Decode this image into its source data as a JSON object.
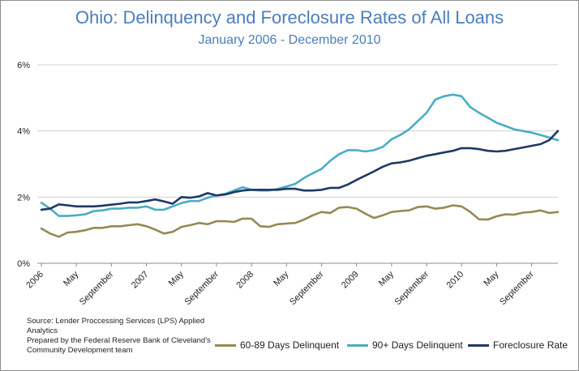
{
  "chart_data": {
    "type": "line",
    "title": "Ohio: Delinquency and Foreclosure Rates of All Loans",
    "subtitle": "January 2006 - December 2010",
    "xlabel": "",
    "ylabel": "",
    "ylim": [
      0,
      6
    ],
    "y_ticks": [
      0,
      2,
      4,
      6
    ],
    "y_tick_labels": [
      "0%",
      "2%",
      "4%",
      "6%"
    ],
    "x_tick_labels": [
      {
        "label": "2006",
        "month": 0
      },
      {
        "label": "May",
        "month": 4
      },
      {
        "label": "September",
        "month": 8
      },
      {
        "label": "2007",
        "month": 12
      },
      {
        "label": "May",
        "month": 16
      },
      {
        "label": "September",
        "month": 20
      },
      {
        "label": "2008",
        "month": 24
      },
      {
        "label": "May",
        "month": 28
      },
      {
        "label": "September",
        "month": 32
      },
      {
        "label": "2009",
        "month": 36
      },
      {
        "label": "May",
        "month": 40
      },
      {
        "label": "September",
        "month": 44
      },
      {
        "label": "2010",
        "month": 48
      },
      {
        "label": "May",
        "month": 52
      },
      {
        "label": "September",
        "month": 56
      }
    ],
    "grid": "horizontal",
    "legend_position": "bottom",
    "series": [
      {
        "name": "60-89 Days Delinquent",
        "color": "#948a54",
        "values": [
          1.05,
          0.9,
          0.8,
          0.93,
          0.95,
          1.0,
          1.07,
          1.07,
          1.12,
          1.12,
          1.15,
          1.18,
          1.12,
          1.02,
          0.9,
          0.95,
          1.1,
          1.15,
          1.22,
          1.18,
          1.27,
          1.27,
          1.25,
          1.35,
          1.35,
          1.12,
          1.1,
          1.18,
          1.2,
          1.22,
          1.32,
          1.45,
          1.55,
          1.52,
          1.68,
          1.7,
          1.65,
          1.5,
          1.37,
          1.45,
          1.55,
          1.58,
          1.6,
          1.7,
          1.72,
          1.65,
          1.68,
          1.75,
          1.72,
          1.55,
          1.33,
          1.32,
          1.42,
          1.48,
          1.47,
          1.53,
          1.55,
          1.6,
          1.52,
          1.55
        ]
      },
      {
        "name": "90+ Days Delinquent",
        "color": "#4bacc6",
        "values": [
          1.83,
          1.65,
          1.43,
          1.43,
          1.45,
          1.48,
          1.58,
          1.6,
          1.65,
          1.65,
          1.68,
          1.68,
          1.72,
          1.62,
          1.62,
          1.72,
          1.82,
          1.88,
          1.88,
          1.98,
          2.05,
          2.1,
          2.2,
          2.3,
          2.22,
          2.2,
          2.2,
          2.25,
          2.32,
          2.4,
          2.58,
          2.72,
          2.85,
          3.1,
          3.3,
          3.42,
          3.42,
          3.38,
          3.42,
          3.52,
          3.75,
          3.88,
          4.05,
          4.3,
          4.55,
          4.95,
          5.05,
          5.1,
          5.05,
          4.72,
          4.55,
          4.4,
          4.25,
          4.15,
          4.05,
          4.0,
          3.95,
          3.88,
          3.8,
          3.72
        ]
      },
      {
        "name": "Foreclosure Rate",
        "color": "#1f3864",
        "values": [
          1.62,
          1.65,
          1.78,
          1.75,
          1.72,
          1.72,
          1.72,
          1.74,
          1.77,
          1.8,
          1.84,
          1.84,
          1.88,
          1.93,
          1.87,
          1.8,
          2.0,
          1.98,
          2.02,
          2.12,
          2.05,
          2.08,
          2.15,
          2.2,
          2.22,
          2.22,
          2.22,
          2.22,
          2.25,
          2.25,
          2.2,
          2.2,
          2.22,
          2.28,
          2.28,
          2.38,
          2.52,
          2.65,
          2.78,
          2.92,
          3.02,
          3.05,
          3.1,
          3.18,
          3.25,
          3.3,
          3.35,
          3.4,
          3.48,
          3.48,
          3.45,
          3.4,
          3.38,
          3.4,
          3.45,
          3.5,
          3.55,
          3.6,
          3.72,
          4.0
        ]
      }
    ]
  },
  "source_lines": [
    "Source: Lender Proccessing Services (LPS) Applied",
    "Analytics",
    "Prepared by the Federal Reserve Bank of Cleveland's",
    "Community Development team"
  ]
}
